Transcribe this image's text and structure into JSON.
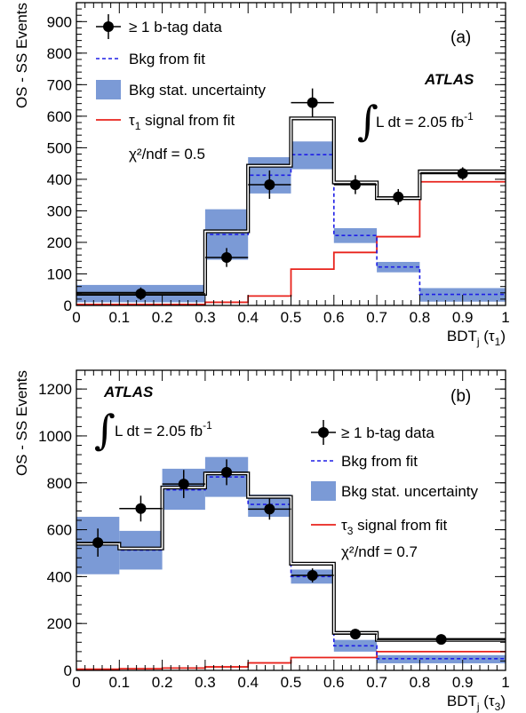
{
  "chart_data": [
    {
      "type": "bar",
      "panel_label": "(a)",
      "experiment": "ATLAS",
      "lumi_text": "L dt = 2.05 fb",
      "lumi_exponent": "-1",
      "chi2_text": "χ²/ndf = 0.5",
      "ylabel": "OS - SS Events",
      "xlabel_main": "BDT",
      "xlabel_sub": "j",
      "xlabel_arg": "(τ",
      "xlabel_arg_sub": "1",
      "xlabel_close": ")",
      "xlim": [
        0,
        1
      ],
      "ylim": [
        0,
        960
      ],
      "xticks": [
        "0",
        "0.1",
        "0.2",
        "0.3",
        "0.4",
        "0.5",
        "0.6",
        "0.7",
        "0.8",
        "0.9",
        "1"
      ],
      "yticks": [
        "0",
        "100",
        "200",
        "300",
        "400",
        "500",
        "600",
        "700",
        "800",
        "900"
      ],
      "xtick_values": [
        0,
        0.1,
        0.2,
        0.3,
        0.4,
        0.5,
        0.6,
        0.7,
        0.8,
        0.9,
        1.0
      ],
      "ytick_values": [
        0,
        100,
        200,
        300,
        400,
        500,
        600,
        700,
        800,
        900
      ],
      "legend_position": "top-left",
      "legend": [
        {
          "kind": "data",
          "text": "≥ 1 b-tag data"
        },
        {
          "kind": "bkg",
          "text": "Bkg from fit"
        },
        {
          "kind": "unc",
          "text": "Bkg stat. uncertainty"
        },
        {
          "kind": "sig",
          "text": "τ",
          "sub": "1",
          "rest": " signal from fit"
        }
      ],
      "bins": [
        {
          "lo": 0.0,
          "hi": 0.3,
          "total": 37,
          "bkg": 37,
          "unc_lo": 10,
          "unc_hi": 65,
          "signal": 3
        },
        {
          "lo": 0.3,
          "hi": 0.4,
          "total": 235,
          "bkg": 225,
          "unc_lo": 145,
          "unc_hi": 305,
          "signal": 10
        },
        {
          "lo": 0.4,
          "hi": 0.5,
          "total": 443,
          "bkg": 413,
          "unc_lo": 355,
          "unc_hi": 470,
          "signal": 30
        },
        {
          "lo": 0.5,
          "hi": 0.6,
          "total": 593,
          "bkg": 478,
          "unc_lo": 432,
          "unc_hi": 520,
          "signal": 115
        },
        {
          "lo": 0.6,
          "hi": 0.7,
          "total": 390,
          "bkg": 222,
          "unc_lo": 198,
          "unc_hi": 245,
          "signal": 168
        },
        {
          "lo": 0.7,
          "hi": 0.8,
          "total": 340,
          "bkg": 122,
          "unc_lo": 105,
          "unc_hi": 138,
          "signal": 218
        },
        {
          "lo": 0.8,
          "hi": 1.0,
          "total": 425,
          "bkg": 35,
          "unc_lo": 12,
          "unc_hi": 55,
          "signal": 392
        }
      ],
      "data_points": [
        {
          "x": 0.15,
          "y": 37,
          "xerr": 0.15,
          "yerr": 20
        },
        {
          "x": 0.35,
          "y": 152,
          "xerr": 0.05,
          "yerr": 30
        },
        {
          "x": 0.45,
          "y": 383,
          "xerr": 0.05,
          "yerr": 45
        },
        {
          "x": 0.55,
          "y": 643,
          "xerr": 0.05,
          "yerr": 45
        },
        {
          "x": 0.65,
          "y": 383,
          "xerr": 0.05,
          "yerr": 30
        },
        {
          "x": 0.75,
          "y": 344,
          "xerr": 0.05,
          "yerr": 25
        },
        {
          "x": 0.9,
          "y": 418,
          "xerr": 0.1,
          "yerr": 20
        }
      ]
    },
    {
      "type": "bar",
      "panel_label": "(b)",
      "experiment": "ATLAS",
      "lumi_text": "L dt = 2.05 fb",
      "lumi_exponent": "-1",
      "chi2_text": "χ²/ndf = 0.7",
      "ylabel": "OS - SS Events",
      "xlabel_main": "BDT",
      "xlabel_sub": "j",
      "xlabel_arg": "(τ",
      "xlabel_arg_sub": "3",
      "xlabel_close": ")",
      "xlim": [
        0,
        1
      ],
      "ylim": [
        0,
        1280
      ],
      "xticks": [
        "0",
        "0.1",
        "0.2",
        "0.3",
        "0.4",
        "0.5",
        "0.6",
        "0.7",
        "0.8",
        "0.9",
        "1"
      ],
      "yticks": [
        "0",
        "200",
        "400",
        "600",
        "800",
        "1000",
        "1200"
      ],
      "xtick_values": [
        0,
        0.1,
        0.2,
        0.3,
        0.4,
        0.5,
        0.6,
        0.7,
        0.8,
        0.9,
        1.0
      ],
      "ytick_values": [
        0,
        200,
        400,
        600,
        800,
        1000,
        1200
      ],
      "legend_position": "top-right",
      "legend": [
        {
          "kind": "data",
          "text": "≥ 1 b-tag data"
        },
        {
          "kind": "bkg",
          "text": "Bkg from fit"
        },
        {
          "kind": "unc",
          "text": "Bkg stat. uncertainty"
        },
        {
          "kind": "sig",
          "text": "τ",
          "sub": "3",
          "rest": " signal from fit"
        }
      ],
      "bins": [
        {
          "lo": 0.0,
          "hi": 0.1,
          "total": 540,
          "bkg": 535,
          "unc_lo": 410,
          "unc_hi": 655,
          "signal": 5
        },
        {
          "lo": 0.1,
          "hi": 0.2,
          "total": 520,
          "bkg": 513,
          "unc_lo": 430,
          "unc_hi": 595,
          "signal": 7
        },
        {
          "lo": 0.2,
          "hi": 0.3,
          "total": 780,
          "bkg": 770,
          "unc_lo": 685,
          "unc_hi": 860,
          "signal": 10
        },
        {
          "lo": 0.3,
          "hi": 0.4,
          "total": 840,
          "bkg": 825,
          "unc_lo": 740,
          "unc_hi": 910,
          "signal": 15
        },
        {
          "lo": 0.4,
          "hi": 0.5,
          "total": 740,
          "bkg": 708,
          "unc_lo": 655,
          "unc_hi": 750,
          "signal": 32
        },
        {
          "lo": 0.5,
          "hi": 0.6,
          "total": 455,
          "bkg": 400,
          "unc_lo": 370,
          "unc_hi": 430,
          "signal": 55
        },
        {
          "lo": 0.6,
          "hi": 0.7,
          "total": 160,
          "bkg": 105,
          "unc_lo": 80,
          "unc_hi": 130,
          "signal": 55
        },
        {
          "lo": 0.7,
          "hi": 1.0,
          "total": 130,
          "bkg": 50,
          "unc_lo": 30,
          "unc_hi": 65,
          "signal": 80
        }
      ],
      "data_points": [
        {
          "x": 0.05,
          "y": 545,
          "xerr": 0.05,
          "yerr": 60
        },
        {
          "x": 0.15,
          "y": 690,
          "xerr": 0.05,
          "yerr": 55
        },
        {
          "x": 0.25,
          "y": 795,
          "xerr": 0.05,
          "yerr": 60
        },
        {
          "x": 0.35,
          "y": 845,
          "xerr": 0.05,
          "yerr": 55
        },
        {
          "x": 0.45,
          "y": 688,
          "xerr": 0.05,
          "yerr": 45
        },
        {
          "x": 0.55,
          "y": 405,
          "xerr": 0.05,
          "yerr": 30
        },
        {
          "x": 0.65,
          "y": 155,
          "xerr": 0.05,
          "yerr": 15
        },
        {
          "x": 0.85,
          "y": 132,
          "xerr": 0.15,
          "yerr": 10
        }
      ]
    }
  ],
  "colors": {
    "uncertainty": "#7b9ad6",
    "background": "#1f1fe6",
    "signal": "#e8231c",
    "total": "#000000",
    "data": "#000000"
  }
}
